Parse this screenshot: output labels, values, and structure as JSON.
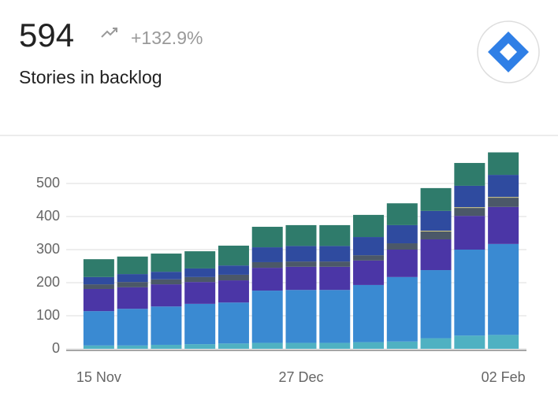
{
  "header": {
    "value": "594",
    "change": "+132.9%",
    "label": "Stories in backlog"
  },
  "chart_data": {
    "type": "stacked-bar",
    "categories": [
      "15 Nov",
      null,
      null,
      null,
      null,
      null,
      "27 Dec",
      null,
      null,
      null,
      null,
      null,
      "02 Feb"
    ],
    "series": [
      {
        "color": "#4fb1c2",
        "values": [
          10,
          10,
          12,
          14,
          16,
          18,
          18,
          18,
          20,
          22,
          32,
          40,
          42
        ]
      },
      {
        "color": "#3a8ad2",
        "values": [
          104,
          111,
          116,
          122,
          124,
          158,
          160,
          160,
          173,
          195,
          206,
          260,
          275
        ]
      },
      {
        "color": "#4b36a6",
        "values": [
          67,
          65,
          67,
          66,
          67,
          69,
          70,
          70,
          74,
          83,
          93,
          102,
          112
        ]
      },
      {
        "color": "#4b5868",
        "values": [
          14,
          16,
          15,
          15,
          17,
          17,
          16,
          16,
          16,
          19,
          24,
          24,
          28
        ]
      },
      {
        "color": "#e6d56f",
        "values": [
          0,
          0,
          0,
          0,
          0,
          0,
          0,
          0,
          0,
          0,
          2,
          2,
          2
        ]
      },
      {
        "color": "#2f4b9f",
        "values": [
          22,
          24,
          23,
          26,
          28,
          45,
          47,
          47,
          55,
          55,
          60,
          65,
          67
        ]
      },
      {
        "color": "#2f7b6b",
        "values": [
          54,
          53,
          55,
          52,
          60,
          62,
          63,
          63,
          67,
          66,
          69,
          69,
          68
        ]
      }
    ],
    "ylim": [
      0,
      600
    ],
    "yticks": [
      0,
      100,
      200,
      300,
      400,
      500
    ],
    "grid": true
  }
}
